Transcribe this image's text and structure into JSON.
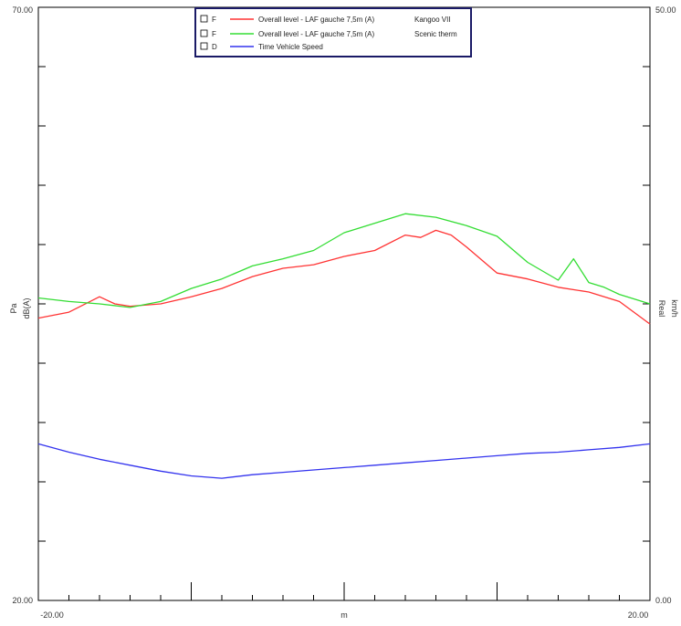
{
  "chart_data": {
    "type": "line",
    "title": "",
    "xlabel": "m",
    "ylabel_left": "Pa dB(A)",
    "ylabel_right": "Real km/h",
    "x_range": [
      -20,
      20
    ],
    "ylim_left": [
      20,
      70
    ],
    "ylim_right": [
      0,
      50
    ],
    "grid": false,
    "legend_position": "top-center",
    "axis_tick_labels": {
      "y_left_top": "70.00",
      "y_left_bottom": "20.00",
      "y_right_top": "50.00",
      "y_right_bottom": "0.00",
      "x_left": "-20.00",
      "x_right": "20.00",
      "x_center": "m"
    },
    "axis_titles": {
      "left_line1": "Pa",
      "left_line2": "dB(A)",
      "right_line1": "Real",
      "right_line2": "km/h"
    },
    "legend": [
      {
        "flag": "F",
        "name": "Overall level - LAF gauche 7,5m (A)",
        "suffix": "Kangoo VII",
        "color": "#ff3333"
      },
      {
        "flag": "F",
        "name": "Overall level - LAF gauche 7,5m (A)",
        "suffix": "Scenic therm",
        "color": "#33dd33"
      },
      {
        "flag": "D",
        "name": "Time Vehicle Speed",
        "suffix": "",
        "color": "#3333ee"
      }
    ],
    "series": [
      {
        "name": "Overall level - LAF gauche 7,5m (A) Kangoo VII",
        "axis": "left",
        "color": "#ff3333",
        "x": [
          -20,
          -18,
          -16,
          -15,
          -14,
          -12,
          -10,
          -8,
          -6,
          -4,
          -2,
          0,
          2,
          4,
          5,
          6,
          7,
          8,
          10,
          12,
          14,
          16,
          18,
          20
        ],
        "y": [
          43.8,
          44.3,
          45.6,
          45.0,
          44.8,
          45.0,
          45.6,
          46.3,
          47.3,
          48.0,
          48.3,
          49.0,
          49.5,
          50.8,
          50.6,
          51.2,
          50.8,
          49.8,
          47.6,
          47.1,
          46.4,
          46.0,
          45.2,
          43.3
        ]
      },
      {
        "name": "Overall level - LAF gauche 7,5m (A) Scenic therm",
        "axis": "left",
        "color": "#33dd33",
        "x": [
          -20,
          -18,
          -16,
          -14,
          -12,
          -10,
          -8,
          -6,
          -4,
          -2,
          0,
          2,
          4,
          6,
          8,
          10,
          12,
          14,
          15,
          16,
          17,
          18,
          20
        ],
        "y": [
          45.5,
          45.2,
          45.0,
          44.7,
          45.2,
          46.3,
          47.1,
          48.2,
          48.8,
          49.5,
          51.0,
          51.8,
          52.6,
          52.3,
          51.6,
          50.7,
          48.5,
          47.0,
          48.8,
          46.8,
          46.4,
          45.8,
          45.0
        ]
      },
      {
        "name": "Time Vehicle Speed",
        "axis": "right",
        "color": "#3333ee",
        "x": [
          -20,
          -18,
          -16,
          -14,
          -12,
          -10,
          -8,
          -6,
          -4,
          -2,
          0,
          2,
          4,
          6,
          8,
          10,
          12,
          14,
          16,
          18,
          20
        ],
        "y": [
          13.2,
          12.5,
          11.9,
          11.4,
          10.9,
          10.5,
          10.3,
          10.6,
          10.8,
          11.0,
          11.2,
          11.4,
          11.6,
          11.8,
          12.0,
          12.2,
          12.4,
          12.5,
          12.7,
          12.9,
          13.2
        ]
      }
    ]
  }
}
